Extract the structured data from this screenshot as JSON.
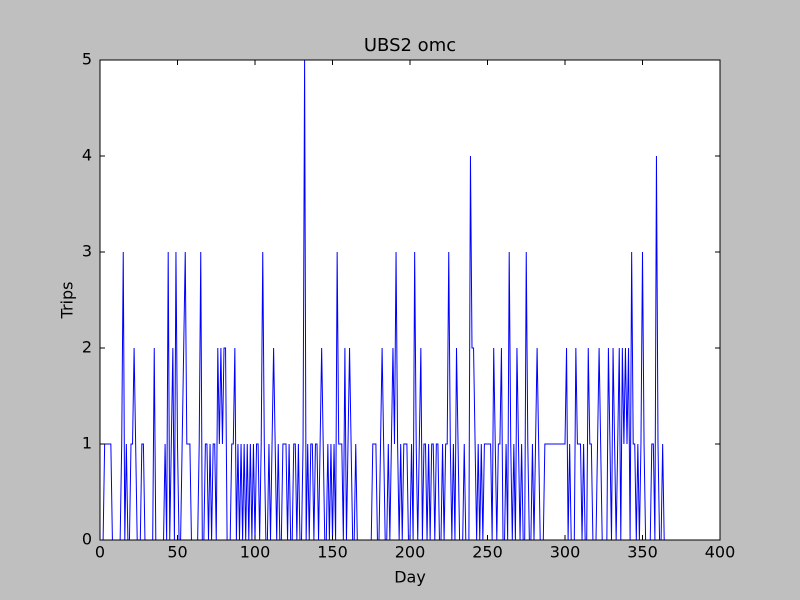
{
  "chart_data": {
    "type": "line",
    "title": "UBS2 omc",
    "x_label": "Day",
    "y_label": "Trips",
    "xlim": [
      0,
      400
    ],
    "xticks": [
      0,
      50,
      100,
      150,
      200,
      250,
      300,
      350,
      400
    ],
    "ylim": [
      0,
      5
    ],
    "yticks": [
      0,
      1,
      2,
      3,
      4,
      5
    ],
    "series": [
      {
        "color": "#0000ff",
        "x": [
          0,
          1,
          2,
          3,
          4,
          5,
          6,
          7,
          8,
          9,
          10,
          11,
          12,
          13,
          14,
          15,
          16,
          17,
          18,
          19,
          20,
          21,
          22,
          23,
          24,
          25,
          26,
          27,
          28,
          29,
          30,
          31,
          32,
          33,
          34,
          35,
          36,
          37,
          38,
          39,
          40,
          41,
          42,
          43,
          44,
          45,
          46,
          47,
          48,
          49,
          50,
          51,
          52,
          53,
          54,
          55,
          56,
          57,
          58,
          59,
          60,
          61,
          62,
          63,
          64,
          65,
          66,
          67,
          68,
          69,
          70,
          71,
          72,
          73,
          74,
          75,
          76,
          77,
          78,
          79,
          80,
          81,
          82,
          83,
          84,
          85,
          86,
          87,
          88,
          89,
          90,
          91,
          92,
          93,
          94,
          95,
          96,
          97,
          98,
          99,
          100,
          101,
          102,
          103,
          104,
          105,
          106,
          107,
          108,
          109,
          110,
          111,
          112,
          113,
          114,
          115,
          116,
          117,
          118,
          119,
          120,
          121,
          122,
          123,
          124,
          125,
          126,
          127,
          128,
          129,
          130,
          131,
          132,
          133,
          134,
          135,
          136,
          137,
          138,
          139,
          140,
          141,
          142,
          143,
          144,
          145,
          146,
          147,
          148,
          149,
          150,
          151,
          152,
          153,
          154,
          155,
          156,
          157,
          158,
          159,
          160,
          161,
          162,
          163,
          164,
          165,
          166,
          167,
          168,
          169,
          170,
          171,
          172,
          173,
          174,
          175,
          176,
          177,
          178,
          179,
          180,
          181,
          182,
          183,
          184,
          185,
          186,
          187,
          188,
          189,
          190,
          191,
          192,
          193,
          194,
          195,
          196,
          197,
          198,
          199,
          200,
          201,
          202,
          203,
          204,
          205,
          206,
          207,
          208,
          209,
          210,
          211,
          212,
          213,
          214,
          215,
          216,
          217,
          218,
          219,
          220,
          221,
          222,
          223,
          224,
          225,
          226,
          227,
          228,
          229,
          230,
          231,
          232,
          233,
          234,
          235,
          236,
          237,
          238,
          239,
          240,
          241,
          242,
          243,
          244,
          245,
          246,
          247,
          248,
          249,
          250,
          251,
          252,
          253,
          254,
          255,
          256,
          257,
          258,
          259,
          260,
          261,
          262,
          263,
          264,
          265,
          266,
          267,
          268,
          269,
          270,
          271,
          272,
          273,
          274,
          275,
          276,
          277,
          278,
          279,
          280,
          281,
          282,
          283,
          284,
          285,
          286,
          287,
          288,
          289,
          290,
          291,
          292,
          293,
          294,
          295,
          296,
          297,
          298,
          299,
          300,
          301,
          302,
          303,
          304,
          305,
          306,
          307,
          308,
          309,
          310,
          311,
          312,
          313,
          314,
          315,
          316,
          317,
          318,
          319,
          320,
          321,
          322,
          323,
          324,
          325,
          326,
          327,
          328,
          329,
          330,
          331,
          332,
          333,
          334,
          335,
          336,
          337,
          338,
          339,
          340,
          341,
          342,
          343,
          344,
          345,
          346,
          347,
          348,
          349,
          350,
          351,
          352,
          353,
          354,
          355,
          356,
          357,
          358,
          359,
          360,
          361,
          362,
          363,
          364,
          365
        ],
        "values": [
          0,
          0,
          0,
          1,
          1,
          1,
          1,
          1,
          0,
          0,
          0,
          0,
          0,
          0,
          1,
          3,
          0,
          1,
          0,
          0,
          1,
          1,
          2,
          1,
          0,
          0,
          0,
          1,
          1,
          0,
          0,
          0,
          0,
          0,
          0,
          2,
          0,
          0,
          0,
          0,
          0,
          0,
          1,
          0,
          3,
          0,
          1,
          2,
          0,
          3,
          1,
          0,
          0,
          1,
          2,
          3,
          1,
          1,
          1,
          0,
          0,
          0,
          0,
          0,
          1,
          3,
          0,
          0,
          1,
          1,
          0,
          1,
          0,
          1,
          1,
          0,
          2,
          1,
          2,
          1,
          2,
          2,
          0,
          0,
          0,
          1,
          1,
          2,
          0,
          1,
          0,
          1,
          0,
          1,
          0,
          1,
          0,
          1,
          0,
          1,
          0,
          1,
          1,
          0,
          1,
          3,
          1,
          0,
          0,
          1,
          0,
          1,
          2,
          1,
          0,
          1,
          0,
          0,
          1,
          1,
          1,
          0,
          1,
          0,
          0,
          1,
          1,
          0,
          1,
          0,
          0,
          1,
          5,
          0,
          1,
          0,
          1,
          1,
          0,
          1,
          1,
          0,
          1,
          2,
          1,
          0,
          0,
          1,
          0,
          1,
          0,
          1,
          0,
          3,
          1,
          1,
          1,
          0,
          2,
          0,
          1,
          2,
          1,
          0,
          0,
          1,
          0,
          0,
          0,
          0,
          0,
          0,
          0,
          0,
          0,
          0,
          1,
          1,
          1,
          0,
          0,
          1,
          2,
          1,
          0,
          0,
          1,
          0,
          1,
          2,
          1,
          3,
          1,
          0,
          1,
          0,
          1,
          1,
          1,
          0,
          0,
          1,
          0,
          3,
          1,
          0,
          1,
          2,
          0,
          1,
          1,
          0,
          1,
          0,
          1,
          1,
          0,
          1,
          1,
          0,
          0,
          1,
          0,
          1,
          1,
          3,
          1,
          0,
          1,
          0,
          2,
          1,
          0,
          0,
          0,
          1,
          0,
          0,
          0,
          4,
          2,
          2,
          1,
          0,
          1,
          0,
          1,
          0,
          1,
          1,
          1,
          1,
          1,
          0,
          2,
          1,
          0,
          1,
          1,
          2,
          0,
          0,
          1,
          0,
          3,
          1,
          0,
          1,
          0,
          2,
          1,
          0,
          1,
          0,
          0,
          3,
          1,
          0,
          0,
          1,
          0,
          1,
          2,
          1,
          0,
          0,
          0,
          1,
          1,
          1,
          1,
          1,
          1,
          1,
          1,
          1,
          1,
          1,
          1,
          1,
          1,
          2,
          0,
          1,
          0,
          0,
          0,
          2,
          1,
          1,
          1,
          0,
          1,
          0,
          0,
          2,
          1,
          1,
          0,
          0,
          0,
          1,
          2,
          1,
          0,
          0,
          0,
          0,
          2,
          1,
          0,
          2,
          1,
          0,
          1,
          2,
          0,
          2,
          1,
          2,
          1,
          2,
          0,
          3,
          1,
          1,
          0,
          1,
          0,
          1,
          3,
          1,
          0,
          0,
          0,
          0,
          1,
          1,
          0,
          4,
          1,
          0,
          0,
          1,
          0,
          0
        ]
      }
    ]
  }
}
